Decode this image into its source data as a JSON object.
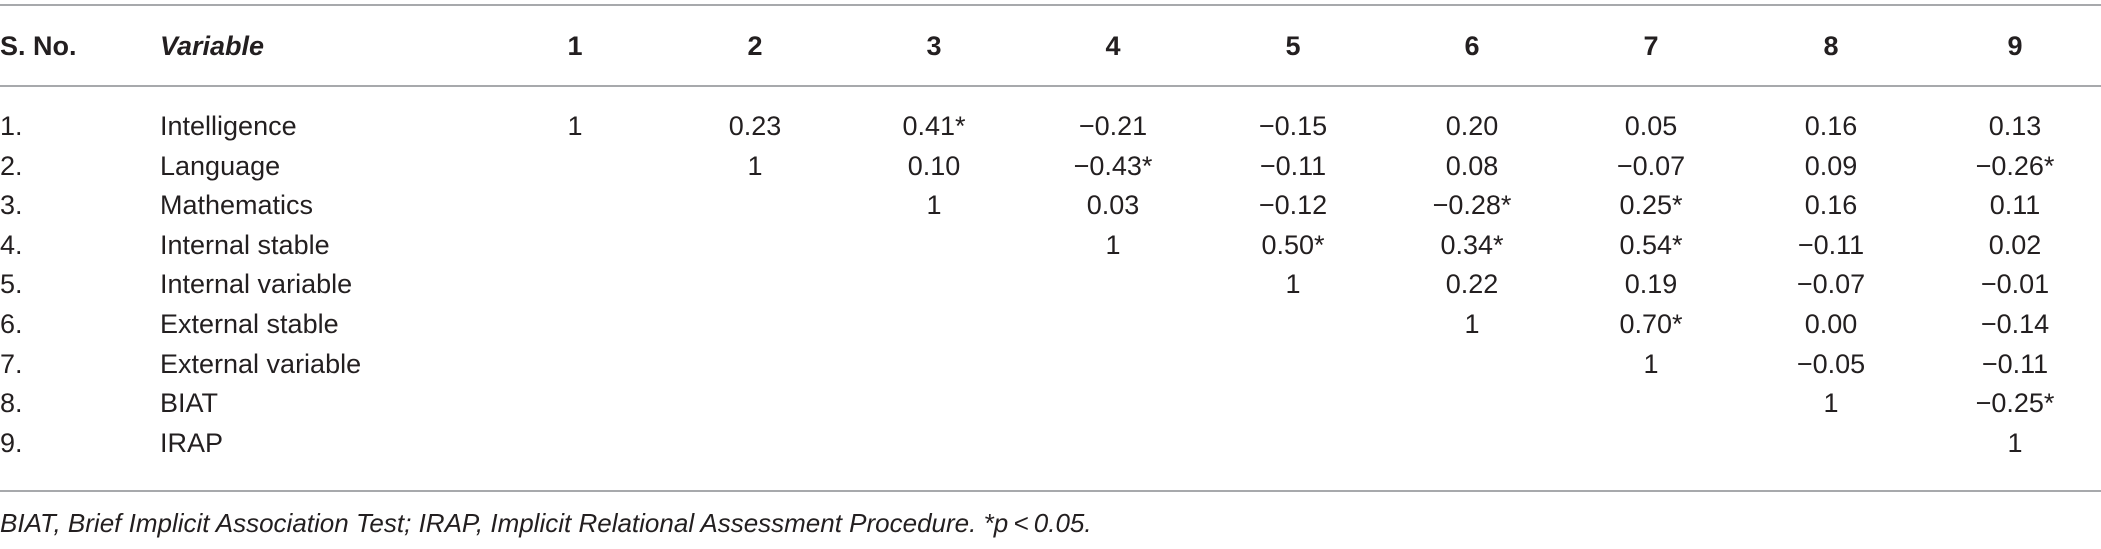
{
  "table": {
    "headers": [
      "S. No.",
      "Variable",
      "1",
      "2",
      "3",
      "4",
      "5",
      "6",
      "7",
      "8",
      "9"
    ],
    "rows": [
      {
        "sno": "1.",
        "variable": "Intelligence",
        "values": [
          "1",
          "0.23",
          "0.41*",
          "−0.21",
          "−0.15",
          "0.20",
          "0.05",
          "0.16",
          "0.13"
        ]
      },
      {
        "sno": "2.",
        "variable": "Language",
        "values": [
          "",
          "1",
          "0.10",
          "−0.43*",
          "−0.11",
          "0.08",
          "−0.07",
          "0.09",
          "−0.26*"
        ]
      },
      {
        "sno": "3.",
        "variable": "Mathematics",
        "values": [
          "",
          "",
          "1",
          "0.03",
          "−0.12",
          "−0.28*",
          "0.25*",
          "0.16",
          "0.11"
        ]
      },
      {
        "sno": "4.",
        "variable": "Internal stable",
        "values": [
          "",
          "",
          "",
          "1",
          "0.50*",
          "0.34*",
          "0.54*",
          "−0.11",
          "0.02"
        ]
      },
      {
        "sno": "5.",
        "variable": "Internal variable",
        "values": [
          "",
          "",
          "",
          "",
          "1",
          "0.22",
          "0.19",
          "−0.07",
          "−0.01"
        ]
      },
      {
        "sno": "6.",
        "variable": "External stable",
        "values": [
          "",
          "",
          "",
          "",
          "",
          "1",
          "0.70*",
          "0.00",
          "−0.14"
        ]
      },
      {
        "sno": "7.",
        "variable": "External variable",
        "values": [
          "",
          "",
          "",
          "",
          "",
          "",
          "1",
          "−0.05",
          "−0.11"
        ]
      },
      {
        "sno": "8.",
        "variable": "BIAT",
        "values": [
          "",
          "",
          "",
          "",
          "",
          "",
          "",
          "1",
          "−0.25*"
        ]
      },
      {
        "sno": "9.",
        "variable": "IRAP",
        "values": [
          "",
          "",
          "",
          "",
          "",
          "",
          "",
          "",
          "1"
        ]
      }
    ]
  },
  "footnote": "BIAT, Brief Implicit Association Test; IRAP, Implicit Relational Assessment Procedure. *p < 0.05."
}
